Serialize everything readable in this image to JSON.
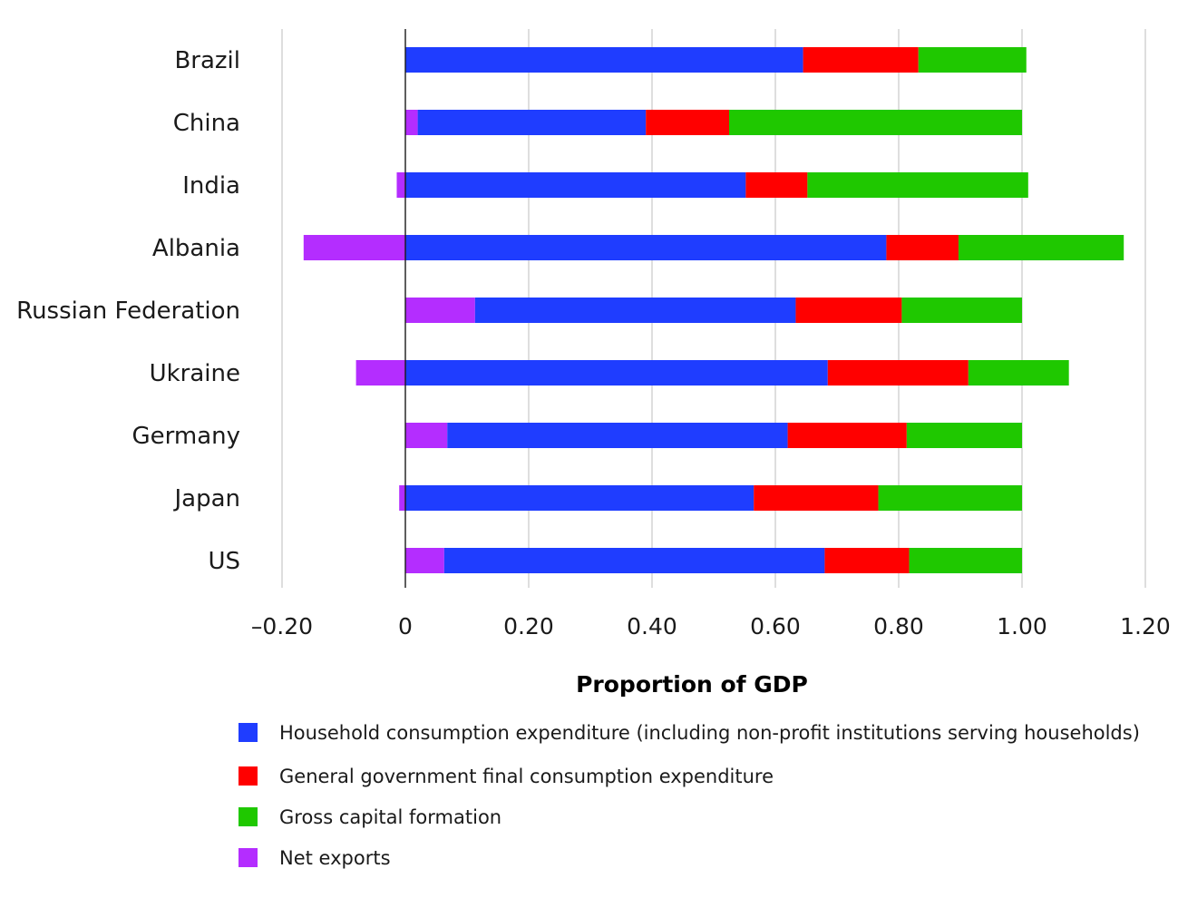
{
  "chart_data": {
    "type": "bar",
    "orientation": "horizontal",
    "stacked": true,
    "categories": [
      "Brazil",
      "China",
      "India",
      "Albania",
      "Russian Federation",
      "Ukraine",
      "Germany",
      "Japan",
      "US"
    ],
    "series": [
      {
        "name": "Household consumption expenditure (including non-profit institutions serving households)",
        "color": "#1f3dff",
        "values": [
          0.645,
          0.37,
          0.552,
          0.78,
          0.52,
          0.685,
          0.552,
          0.565,
          0.617
        ]
      },
      {
        "name": "General government final consumption expenditure",
        "color": "#ff0000",
        "values": [
          0.187,
          0.135,
          0.1,
          0.117,
          0.172,
          0.228,
          0.193,
          0.202,
          0.137
        ]
      },
      {
        "name": "Gross capital formation",
        "color": "#1fc800",
        "values": [
          0.175,
          0.475,
          0.358,
          0.268,
          0.195,
          0.163,
          0.187,
          0.233,
          0.183
        ]
      },
      {
        "name": "Net exports",
        "color": "#b42dff",
        "values": [
          0.0,
          0.02,
          -0.014,
          -0.165,
          0.113,
          -0.08,
          0.068,
          -0.01,
          0.063
        ]
      }
    ],
    "xlabel": "Proportion of GDP",
    "xlim": [
      -0.2,
      1.2
    ],
    "xticks": [
      -0.2,
      0,
      0.2,
      0.4,
      0.6,
      0.8,
      1.0,
      1.2
    ],
    "xtick_labels": [
      "–0.20",
      "0",
      "0.20",
      "0.40",
      "0.60",
      "0.80",
      "1.00",
      "1.20"
    ],
    "grid": "vertical",
    "legend_position": "bottom"
  }
}
